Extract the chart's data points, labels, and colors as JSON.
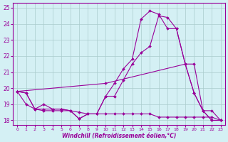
{
  "xlabel": "Windchill (Refroidissement éolien,°C)",
  "bg_color": "#d4f0f4",
  "line_color": "#990099",
  "grid_color": "#aacccc",
  "xlim": [
    -0.5,
    23.5
  ],
  "ylim": [
    17.7,
    25.3
  ],
  "yticks": [
    18,
    19,
    20,
    21,
    22,
    23,
    24,
    25
  ],
  "xticks": [
    0,
    1,
    2,
    3,
    4,
    5,
    6,
    7,
    8,
    9,
    10,
    11,
    12,
    13,
    14,
    15,
    16,
    17,
    18,
    19,
    20,
    21,
    22,
    23
  ],
  "series": [
    {
      "x": [
        0,
        1,
        2,
        3,
        4,
        5,
        6,
        7,
        8,
        9,
        10,
        11,
        12,
        13,
        14,
        15,
        16,
        17,
        18,
        19,
        20,
        21,
        22,
        23
      ],
      "y": [
        19.8,
        19.7,
        18.7,
        18.7,
        18.7,
        18.7,
        18.6,
        18.1,
        18.4,
        18.4,
        19.5,
        20.3,
        21.2,
        21.8,
        24.3,
        24.8,
        24.6,
        23.7,
        23.7,
        21.5,
        19.7,
        18.6,
        18.0,
        18.0
      ]
    },
    {
      "x": [
        0,
        1,
        2,
        3,
        4,
        5,
        6,
        7,
        8,
        9,
        10,
        11,
        12,
        13,
        14,
        15,
        16,
        17,
        18,
        19,
        20,
        21,
        22,
        23
      ],
      "y": [
        19.8,
        19.7,
        18.7,
        19.0,
        18.7,
        18.7,
        18.6,
        18.5,
        18.4,
        18.4,
        19.5,
        19.5,
        20.5,
        21.5,
        22.2,
        22.6,
        24.5,
        24.4,
        23.7,
        21.5,
        19.7,
        18.6,
        18.6,
        18.0
      ]
    },
    {
      "x": [
        0,
        10,
        19,
        20,
        21,
        22,
        23
      ],
      "y": [
        19.8,
        20.3,
        21.5,
        21.5,
        18.6,
        18.0,
        18.0
      ]
    },
    {
      "x": [
        0,
        1,
        2,
        3,
        4,
        5,
        6,
        7,
        8,
        9,
        10,
        11,
        12,
        13,
        14,
        15,
        16,
        17,
        18,
        19,
        20,
        21,
        22,
        23
      ],
      "y": [
        19.8,
        19.0,
        18.7,
        18.6,
        18.6,
        18.6,
        18.6,
        18.1,
        18.4,
        18.4,
        18.4,
        18.4,
        18.4,
        18.4,
        18.4,
        18.4,
        18.2,
        18.2,
        18.2,
        18.2,
        18.2,
        18.2,
        18.2,
        18.0
      ]
    }
  ]
}
